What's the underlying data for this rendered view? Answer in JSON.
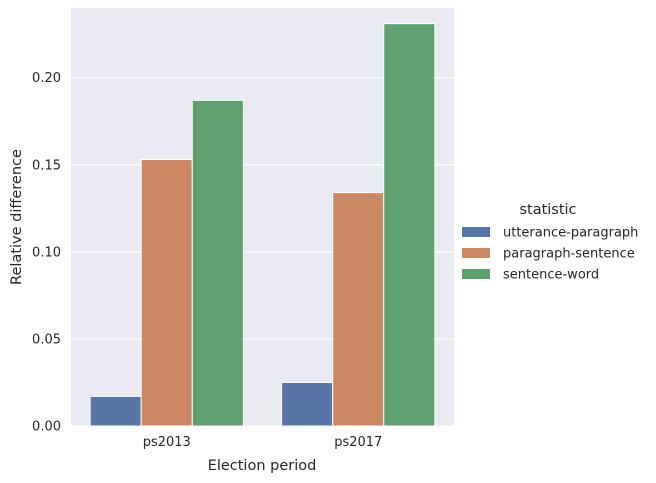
{
  "chart_data": {
    "type": "bar",
    "categories": [
      "ps2013",
      "ps2017"
    ],
    "series": [
      {
        "name": "utterance-paragraph",
        "color": "#5875a8",
        "values": [
          0.017,
          0.025
        ]
      },
      {
        "name": "paragraph-sentence",
        "color": "#cc8862",
        "values": [
          0.153,
          0.134
        ]
      },
      {
        "name": "sentence-word",
        "color": "#5ea16e",
        "values": [
          0.187,
          0.231
        ]
      }
    ],
    "xlabel": "Election period",
    "ylabel": "Relative difference",
    "ylim": [
      0,
      0.24
    ],
    "yticks": [
      0.0,
      0.05,
      0.1,
      0.15,
      0.2
    ],
    "ytick_labels": [
      "0.00",
      "0.05",
      "0.10",
      "0.15",
      "0.20"
    ],
    "legend_title": "statistic",
    "legend_position": "right",
    "grid": true,
    "background": "#eaeaf2"
  }
}
